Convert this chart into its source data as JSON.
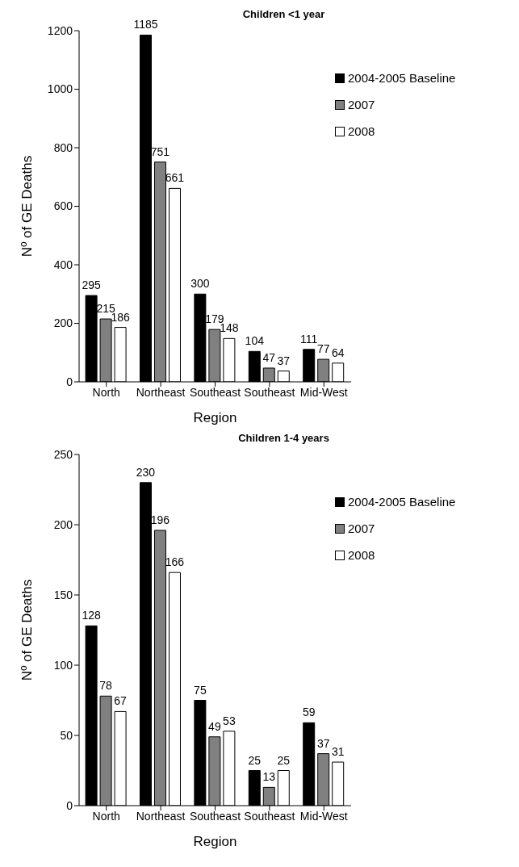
{
  "chart_data": [
    {
      "type": "bar",
      "title": "Children <1 year",
      "xlabel": "Region",
      "ylabel": "Nº of GE Deaths",
      "categories": [
        "North",
        "Northeast",
        "Southeast",
        "Southeast",
        "Mid-West"
      ],
      "series": [
        {
          "name": "2004-2005 Baseline",
          "color": "#000000",
          "values": [
            295,
            1185,
            300,
            104,
            111
          ]
        },
        {
          "name": "2007",
          "color": "#808080",
          "values": [
            215,
            751,
            179,
            47,
            77
          ]
        },
        {
          "name": "2008",
          "color": "#ffffff",
          "values": [
            186,
            661,
            148,
            37,
            64
          ]
        }
      ],
      "ylim": [
        0,
        1200
      ],
      "yticks": [
        0,
        200,
        400,
        600,
        800,
        1000,
        1200
      ],
      "data_labels": true,
      "legend": "top right",
      "grid": false
    },
    {
      "type": "bar",
      "title": "Children 1-4 years",
      "xlabel": "Region",
      "ylabel": "Nº of GE Deaths",
      "categories": [
        "North",
        "Northeast",
        "Southeast",
        "Southeast",
        "Mid-West"
      ],
      "series": [
        {
          "name": "2004-2005 Baseline",
          "color": "#000000",
          "values": [
            128,
            230,
            75,
            25,
            59
          ]
        },
        {
          "name": "2007",
          "color": "#808080",
          "values": [
            78,
            196,
            49,
            13,
            37
          ]
        },
        {
          "name": "2008",
          "color": "#ffffff",
          "values": [
            67,
            166,
            53,
            25,
            31
          ]
        }
      ],
      "ylim": [
        0,
        250
      ],
      "yticks": [
        0,
        50,
        100,
        150,
        200,
        250
      ],
      "data_labels": true,
      "legend": "top right",
      "grid": false
    }
  ]
}
